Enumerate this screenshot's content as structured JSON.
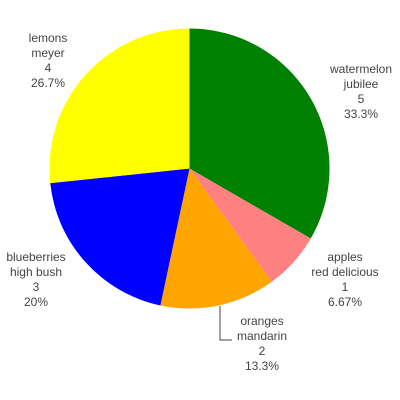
{
  "chart_data": {
    "type": "pie",
    "direction": "clockwise",
    "start_angle_deg": 0,
    "total": 15,
    "slices": [
      {
        "label_lines": [
          "watermelon",
          "jubilee"
        ],
        "value": 5,
        "value_text": "5",
        "percent_text": "33.3%",
        "color": "#008000"
      },
      {
        "label_lines": [
          "apples",
          "red delicious"
        ],
        "value": 1,
        "value_text": "1",
        "percent_text": "6.67%",
        "color": "#ff8080"
      },
      {
        "label_lines": [
          "oranges",
          "mandarin"
        ],
        "value": 2,
        "value_text": "2",
        "percent_text": "13.3%",
        "color": "#ffa500"
      },
      {
        "label_lines": [
          "blueberries",
          "high bush"
        ],
        "value": 3,
        "value_text": "3",
        "percent_text": "20%",
        "color": "#0000ff"
      },
      {
        "label_lines": [
          "lemons",
          "meyer"
        ],
        "value": 4,
        "value_text": "4",
        "percent_text": "26.7%",
        "color": "#ffff00"
      }
    ]
  }
}
